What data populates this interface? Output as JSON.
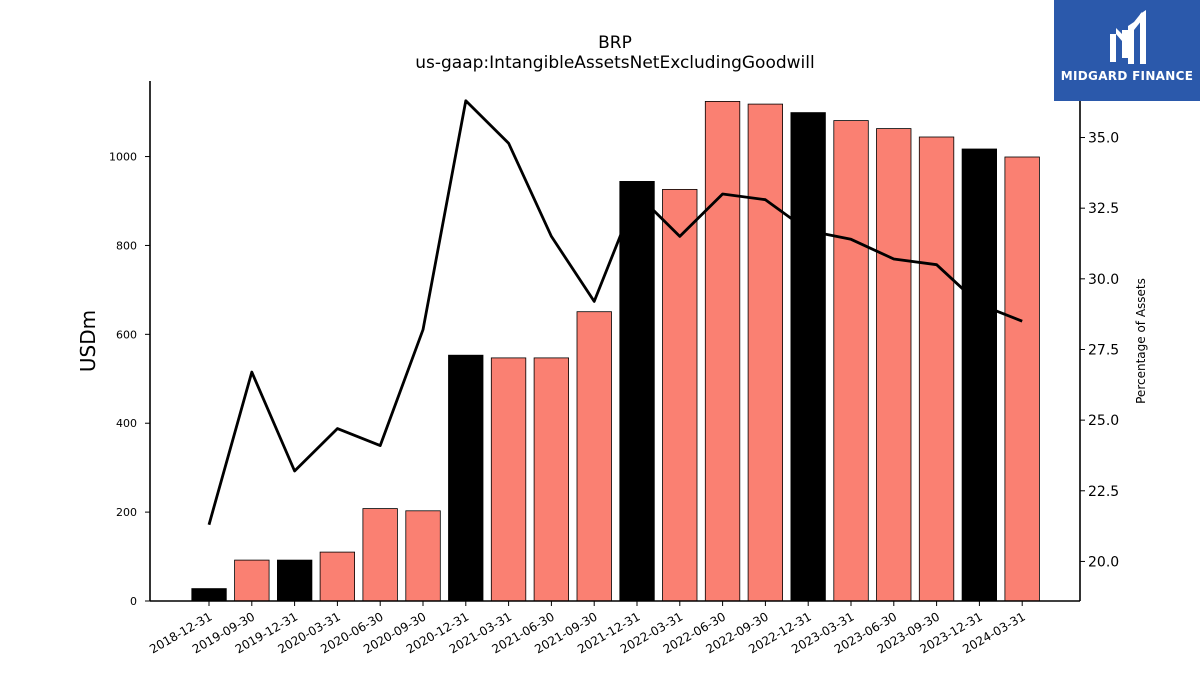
{
  "header": {
    "title": "BRP",
    "subtitle": "us-gaap:IntangibleAssetsNetExcludingGoodwill"
  },
  "logo": {
    "text": "MIDGARD FINANCE",
    "icon": "midgard-logo-icon",
    "background": "#2b59ab"
  },
  "chart_data": {
    "type": "bar",
    "title": "BRP",
    "subtitle": "us-gaap:IntangibleAssetsNetExcludingGoodwill",
    "categories": [
      "2018-12-31",
      "2019-09-30",
      "2019-12-31",
      "2020-03-31",
      "2020-06-30",
      "2020-09-30",
      "2020-12-31",
      "2021-03-31",
      "2021-06-30",
      "2021-09-30",
      "2021-12-31",
      "2022-03-31",
      "2022-06-30",
      "2022-09-30",
      "2022-12-31",
      "2023-03-31",
      "2023-06-30",
      "2023-09-30",
      "2023-12-31",
      "2024-03-31"
    ],
    "series": [
      {
        "type": "bar",
        "axis": "left",
        "values": [
          28,
          92,
          92,
          110,
          208,
          203,
          553,
          547,
          547,
          651,
          944,
          926,
          1124,
          1118,
          1099,
          1081,
          1063,
          1044,
          1017,
          999
        ],
        "colors": [
          "#000000",
          "#fa8072",
          "#000000",
          "#fa8072",
          "#fa8072",
          "#fa8072",
          "#000000",
          "#fa8072",
          "#fa8072",
          "#fa8072",
          "#000000",
          "#fa8072",
          "#fa8072",
          "#fa8072",
          "#000000",
          "#fa8072",
          "#fa8072",
          "#fa8072",
          "#000000",
          "#fa8072"
        ]
      },
      {
        "type": "line",
        "axis": "right",
        "color": "#000000",
        "values": [
          21.3,
          26.7,
          23.2,
          24.7,
          24.1,
          28.2,
          36.3,
          34.8,
          31.5,
          29.2,
          33.0,
          31.5,
          33.0,
          32.8,
          31.7,
          31.4,
          30.7,
          30.5,
          29.1,
          28.5
        ]
      }
    ],
    "ylabel": "USDm",
    "y2label": "Percentage of Assets",
    "ylim": [
      0,
      1170
    ],
    "y2lim": [
      18.6,
      37.0
    ],
    "yticks": [
      0,
      200,
      400,
      600,
      800,
      1000
    ],
    "y2ticks": [
      "20.0",
      "22.5",
      "25.0",
      "27.5",
      "30.0",
      "32.5",
      "35.0"
    ],
    "grid": false
  }
}
